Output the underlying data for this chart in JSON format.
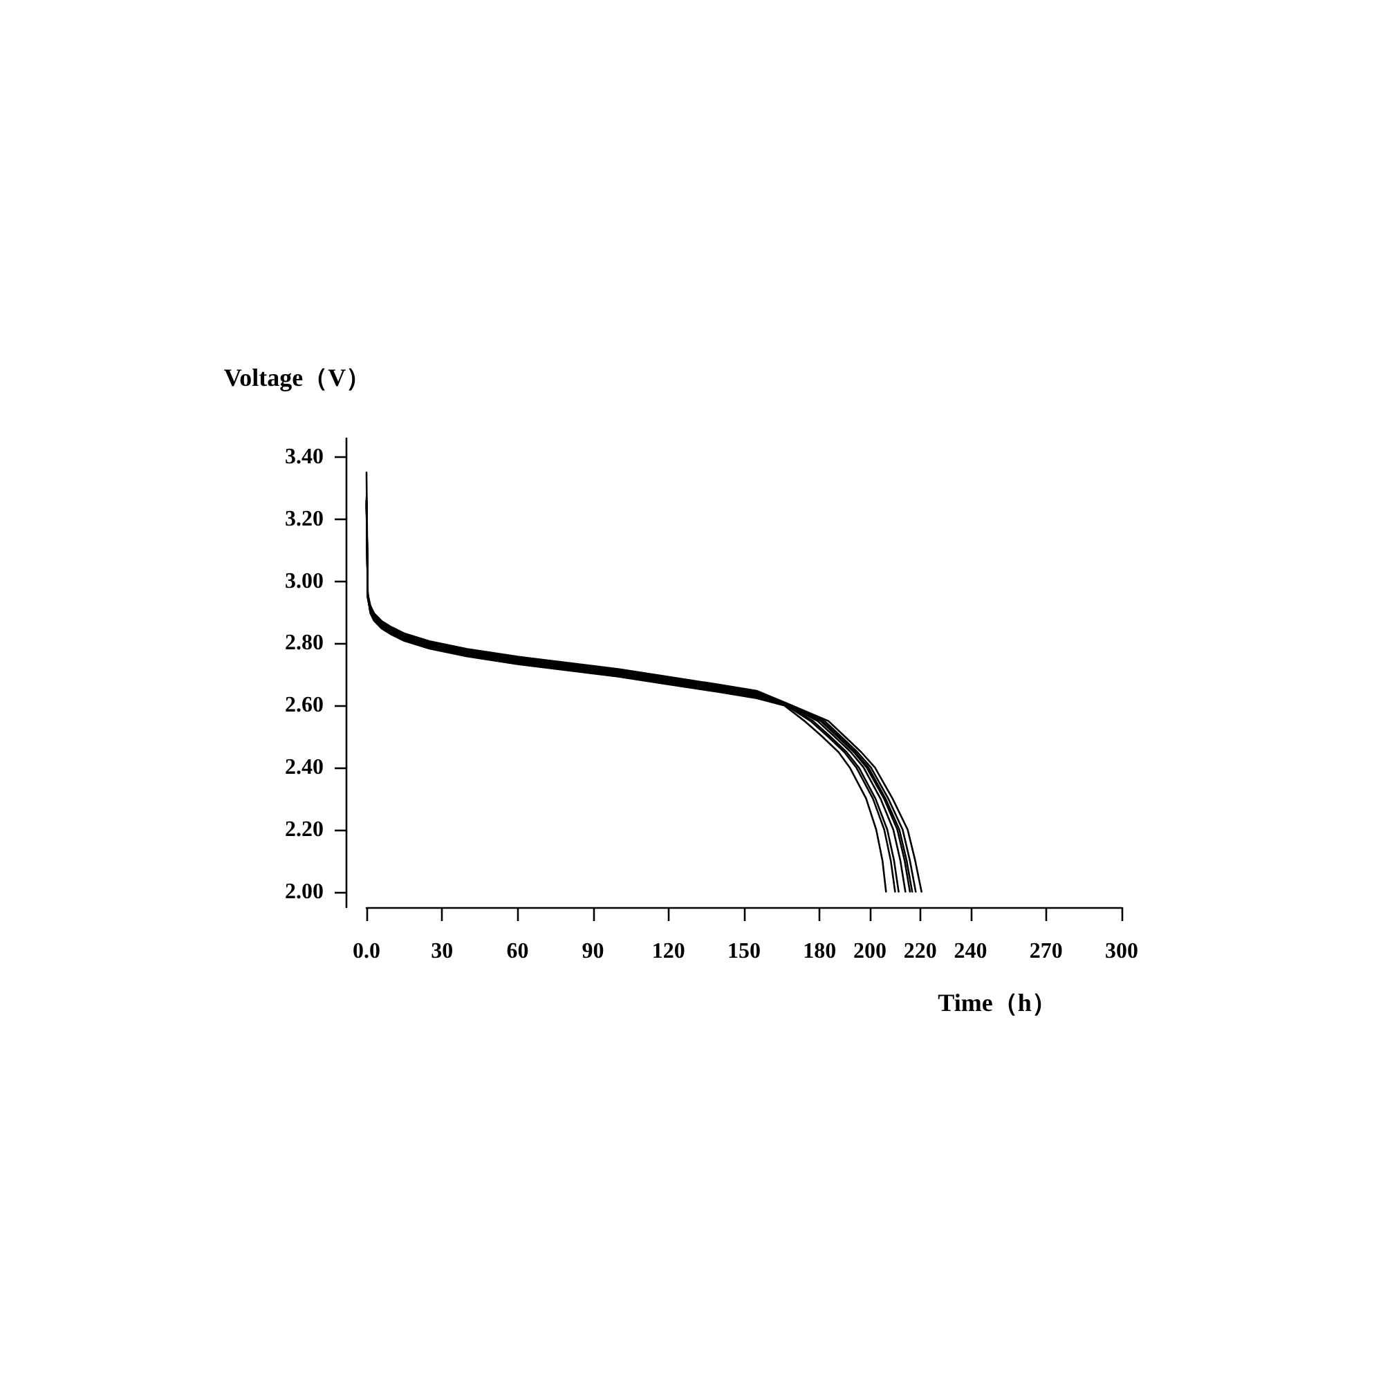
{
  "chart_data": {
    "type": "line",
    "xlabel": "Time（h）",
    "ylabel": "Voltage（V）",
    "xlim": [
      0,
      300
    ],
    "xticks": [
      {
        "value": 0,
        "label": "0.0"
      },
      30,
      60,
      90,
      120,
      150,
      180,
      200,
      220,
      240,
      270,
      300
    ],
    "ylim": [
      1.95,
      3.46
    ],
    "yticks": [
      {
        "value": 2,
        "label": "2.00"
      },
      {
        "value": 2.2,
        "label": "2.20"
      },
      {
        "value": 2.4,
        "label": "2.40"
      },
      {
        "value": 2.6,
        "label": "2.60"
      },
      {
        "value": 2.8,
        "label": "2.80"
      },
      {
        "value": 3,
        "label": "3.00"
      },
      {
        "value": 3.2,
        "label": "3.20"
      },
      {
        "value": 3.4,
        "label": "3.40"
      }
    ],
    "grid": false,
    "marker": "none",
    "line_style": "solid",
    "series": [
      {
        "color": "#000000",
        "x": [
          0,
          0.5,
          1.5,
          3,
          6,
          10,
          15,
          25,
          40,
          60,
          80,
          100,
          120,
          140,
          155,
          166,
          174,
          181,
          187.5,
          192,
          198.5,
          202.5,
          205,
          206.4
        ],
        "values": [
          3.35,
          2.96,
          2.898,
          2.873,
          2.848,
          2.828,
          2.808,
          2.783,
          2.758,
          2.733,
          2.713,
          2.693,
          2.668,
          2.643,
          2.623,
          2.6,
          2.55,
          2.5,
          2.45,
          2.4,
          2.3,
          2.2,
          2.1,
          2.0
        ]
      },
      {
        "color": "#000000",
        "x": [
          0,
          0.5,
          1.5,
          3,
          6,
          10,
          15,
          25,
          40,
          60,
          80,
          100,
          120,
          140,
          155,
          166.8,
          176.4,
          183.3,
          189.8,
          194.6,
          201.2,
          205.7,
          208.3,
          210.0
        ],
        "values": [
          3.26,
          2.95,
          2.902,
          2.877,
          2.852,
          2.832,
          2.812,
          2.787,
          2.762,
          2.737,
          2.717,
          2.697,
          2.672,
          2.647,
          2.627,
          2.6,
          2.55,
          2.5,
          2.45,
          2.4,
          2.3,
          2.2,
          2.1,
          2.0
        ]
      },
      {
        "color": "#000000",
        "x": [
          0,
          0.5,
          1.5,
          3,
          6,
          10,
          15,
          25,
          40,
          60,
          80,
          100,
          120,
          140,
          155,
          167.1,
          177.4,
          184.2,
          190.7,
          195.6,
          202.2,
          206.9,
          209.6,
          211.4
        ],
        "values": [
          3.25,
          2.945,
          2.905,
          2.88,
          2.855,
          2.835,
          2.815,
          2.79,
          2.765,
          2.74,
          2.72,
          2.7,
          2.675,
          2.65,
          2.63,
          2.6,
          2.55,
          2.5,
          2.45,
          2.4,
          2.3,
          2.2,
          2.1,
          2.0
        ]
      },
      {
        "color": "#000000",
        "x": [
          0,
          0.5,
          1.5,
          3,
          6,
          10,
          15,
          25,
          40,
          60,
          80,
          100,
          120,
          140,
          155,
          167.6,
          179.2,
          185.9,
          192.4,
          197.5,
          204.2,
          209.3,
          212.1,
          214.1
        ],
        "values": [
          3.27,
          2.95,
          2.908,
          2.883,
          2.858,
          2.838,
          2.818,
          2.793,
          2.768,
          2.743,
          2.723,
          2.703,
          2.678,
          2.653,
          2.633,
          2.6,
          2.55,
          2.5,
          2.45,
          2.4,
          2.3,
          2.2,
          2.1,
          2.0
        ]
      },
      {
        "color": "#000000",
        "x": [
          0,
          0.5,
          1.5,
          3,
          6,
          10,
          15,
          25,
          40,
          60,
          80,
          100,
          120,
          140,
          155,
          168.0,
          180.4,
          187.1,
          193.6,
          198.7,
          205.6,
          210.9,
          213.8,
          215.9
        ],
        "values": [
          3.26,
          2.955,
          2.912,
          2.887,
          2.862,
          2.842,
          2.822,
          2.797,
          2.772,
          2.747,
          2.727,
          2.707,
          2.682,
          2.657,
          2.637,
          2.6,
          2.55,
          2.5,
          2.45,
          2.4,
          2.3,
          2.2,
          2.1,
          2.0
        ]
      },
      {
        "color": "#000000",
        "x": [
          0,
          0.5,
          1.5,
          3,
          6,
          10,
          15,
          25,
          40,
          60,
          80,
          100,
          120,
          140,
          155,
          168.2,
          181.0,
          187.6,
          194.1,
          199.4,
          206.2,
          211.7,
          214.6,
          216.8
        ],
        "values": [
          3.24,
          2.95,
          2.915,
          2.89,
          2.865,
          2.845,
          2.825,
          2.8,
          2.775,
          2.75,
          2.73,
          2.71,
          2.685,
          2.66,
          2.64,
          2.6,
          2.55,
          2.5,
          2.45,
          2.4,
          2.3,
          2.2,
          2.1,
          2.0
        ]
      },
      {
        "color": "#000000",
        "x": [
          0,
          0.5,
          1.5,
          3,
          6,
          10,
          15,
          25,
          40,
          60,
          80,
          100,
          120,
          140,
          155,
          168.5,
          182.0,
          188.5,
          195.0,
          200.4,
          207.3,
          213.0,
          215.9,
          218.2
        ],
        "values": [
          3.26,
          2.955,
          2.918,
          2.893,
          2.868,
          2.848,
          2.828,
          2.803,
          2.778,
          2.753,
          2.733,
          2.713,
          2.688,
          2.663,
          2.643,
          2.6,
          2.55,
          2.5,
          2.45,
          2.4,
          2.3,
          2.2,
          2.1,
          2.0
        ]
      },
      {
        "color": "#000000",
        "x": [
          0,
          0.5,
          1.5,
          3,
          6,
          10,
          15,
          25,
          40,
          60,
          80,
          100,
          120,
          140,
          155,
          169,
          183.5,
          190,
          196.5,
          202,
          209,
          215,
          218,
          220.5
        ],
        "values": [
          3.25,
          2.96,
          2.922,
          2.897,
          2.872,
          2.852,
          2.832,
          2.807,
          2.782,
          2.757,
          2.737,
          2.717,
          2.692,
          2.667,
          2.647,
          2.6,
          2.55,
          2.5,
          2.45,
          2.4,
          2.3,
          2.2,
          2.1,
          2.0
        ]
      }
    ]
  }
}
